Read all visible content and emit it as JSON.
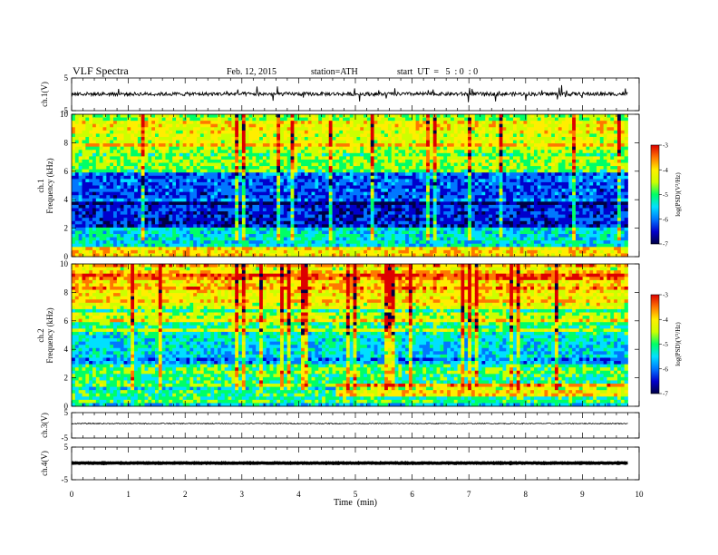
{
  "header": {
    "title": "VLF Spectra",
    "date": "Feb. 12, 2015",
    "station": "station=ATH",
    "start": "start  UT  =   5  : 0  : 0"
  },
  "chart_data": {
    "type": "heatmap",
    "xlabel": "Time  (min)",
    "xlim": [
      0,
      10
    ],
    "xticks": [
      "0",
      "1",
      "2",
      "3",
      "4",
      "5",
      "6",
      "7",
      "8",
      "9",
      "10"
    ],
    "data_end_min": 9.8,
    "panels": [
      {
        "id": "ch1-wave",
        "kind": "waveform",
        "ylabel": "ch.1(V)",
        "ylim": [
          -5,
          5
        ],
        "yticks": [
          "5",
          "-5"
        ],
        "offset": 0.1,
        "noise": 0.55,
        "spike": 2.4
      },
      {
        "id": "ch1-spec",
        "kind": "spectrogram",
        "ylabel": [
          "ch.1",
          "Frequency  (kHz)"
        ],
        "ylim": [
          0,
          10
        ],
        "yticks": [
          "0",
          "2",
          "4",
          "6",
          "8",
          "10"
        ]
      },
      {
        "id": "ch2-spec",
        "kind": "spectrogram",
        "ylabel": [
          "ch.2",
          "Frequency  (kHz)"
        ],
        "ylim": [
          0,
          10
        ],
        "yticks": [
          "0",
          "2",
          "4",
          "6",
          "8",
          "10"
        ]
      },
      {
        "id": "ch3-wave",
        "kind": "waveform",
        "ylabel": "ch.3(V)",
        "ylim": [
          -5,
          5
        ],
        "yticks": [
          "5",
          "-5"
        ],
        "offset": 0.7,
        "noise": 0.2,
        "spike": 0
      },
      {
        "id": "ch4-wave",
        "kind": "waveform",
        "ylabel": "ch.4(V)",
        "ylim": [
          -5,
          5
        ],
        "yticks": [
          "5",
          "-5"
        ],
        "offset": 0.1,
        "noise": 0.1,
        "spike": 0
      }
    ],
    "colorbar": {
      "label": "log(PSD)(V²/Hz)",
      "range": [
        -7,
        -3
      ],
      "ticks": [
        "-3",
        "-4",
        "-5",
        "-6",
        "-7"
      ]
    }
  },
  "colors": {
    "scale": [
      "#000044",
      "#0000cc",
      "#0077ff",
      "#00e0ff",
      "#00ff66",
      "#ccff00",
      "#ffee00",
      "#ff7700",
      "#dd0000",
      "#ffffff"
    ]
  }
}
